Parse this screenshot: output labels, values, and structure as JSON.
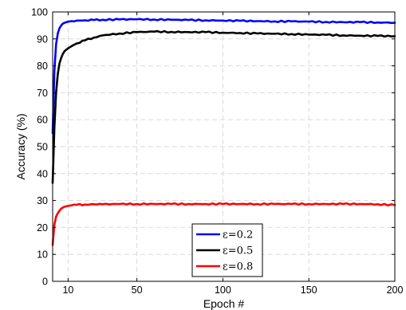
{
  "chart_data": {
    "type": "line",
    "title": "",
    "xlabel": "Epoch #",
    "ylabel": "Accuracy (%)",
    "xlim": [
      1,
      200
    ],
    "ylim": [
      0,
      100
    ],
    "x_ticks": [
      10,
      50,
      100,
      150,
      200
    ],
    "y_ticks": [
      0,
      10,
      20,
      30,
      40,
      50,
      60,
      70,
      80,
      90,
      100
    ],
    "grid": true,
    "legend_position": "bottom-center",
    "x": [
      1,
      2,
      3,
      4,
      5,
      6,
      7,
      8,
      10,
      12,
      15,
      20,
      25,
      30,
      40,
      50,
      60,
      70,
      80,
      90,
      100,
      110,
      120,
      130,
      140,
      150,
      160,
      170,
      180,
      190,
      200
    ],
    "series": [
      {
        "name": "ε=0.2",
        "color": "#0000ff",
        "values": [
          55,
          78,
          88,
          92,
          94,
          95,
          95.7,
          96,
          96.4,
          96.6,
          96.8,
          96.9,
          97,
          97.1,
          97.2,
          97.3,
          97.2,
          97.1,
          97,
          96.9,
          96.8,
          96.7,
          96.6,
          96.5,
          96.5,
          96.4,
          96.3,
          96.2,
          96.2,
          96.1,
          96
        ]
      },
      {
        "name": "ε=0.5",
        "color": "#000000",
        "values": [
          36.5,
          57,
          70,
          77,
          81,
          83,
          84.5,
          85.5,
          86.5,
          87.3,
          88.3,
          89.5,
          90.5,
          91.3,
          92,
          92.5,
          92.7,
          92.6,
          92.5,
          92.5,
          92.3,
          92.2,
          92,
          91.9,
          91.8,
          91.6,
          91.5,
          91.3,
          91.2,
          91.1,
          91
        ]
      },
      {
        "name": "ε=0.8",
        "color": "#ff0000",
        "values": [
          13.5,
          21,
          24,
          25.3,
          26.2,
          27,
          27.4,
          27.7,
          28,
          28.2,
          28.4,
          28.5,
          28.6,
          28.6,
          28.7,
          28.7,
          28.7,
          28.7,
          28.7,
          28.7,
          28.7,
          28.7,
          28.7,
          28.7,
          28.7,
          28.7,
          28.7,
          28.7,
          28.7,
          28.6,
          28.3
        ]
      }
    ]
  }
}
